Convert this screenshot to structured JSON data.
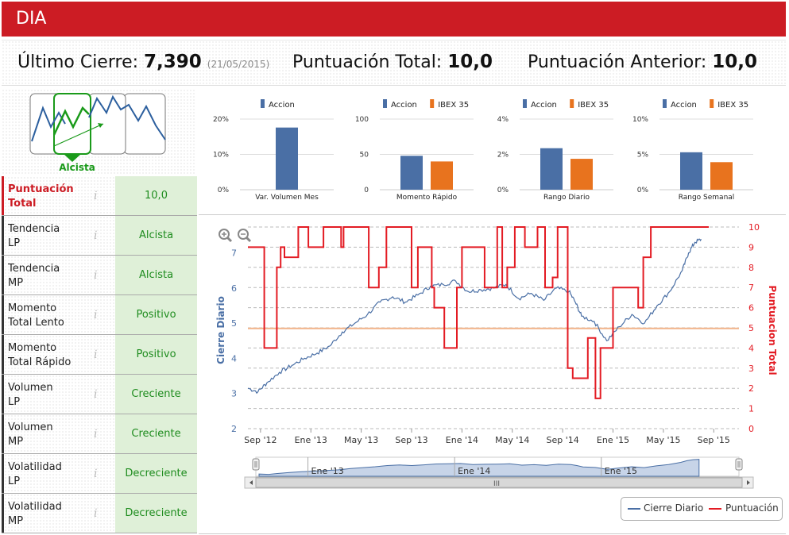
{
  "header": {
    "title": "DIA"
  },
  "summary": {
    "last_close_label": "Último Cierre:",
    "last_close_value": "7,390",
    "last_close_date": "(21/05/2015)",
    "total_label": "Puntuación Total:",
    "total_value": "10,0",
    "prev_label": "Puntuación Anterior:",
    "prev_value": "10,0"
  },
  "trend": {
    "label": "Alcista"
  },
  "table": [
    {
      "name_line1": "Puntuación",
      "name_line2": "Total",
      "value": "10,0",
      "info": "i"
    },
    {
      "name_line1": "Tendencia",
      "name_line2": "LP",
      "value": "Alcista",
      "info": "i"
    },
    {
      "name_line1": "Tendencia",
      "name_line2": "MP",
      "value": "Alcista",
      "info": "i"
    },
    {
      "name_line1": "Momento",
      "name_line2": "Total Lento",
      "value": "Positivo",
      "info": "i"
    },
    {
      "name_line1": "Momento",
      "name_line2": "Total Rápido",
      "value": "Positivo",
      "info": "i"
    },
    {
      "name_line1": "Volumen",
      "name_line2": "LP",
      "value": "Creciente",
      "info": "i"
    },
    {
      "name_line1": "Volumen",
      "name_line2": "MP",
      "value": "Creciente",
      "info": "i"
    },
    {
      "name_line1": "Volatilidad",
      "name_line2": "LP",
      "value": "Decreciente",
      "info": "i"
    },
    {
      "name_line1": "Volatilidad",
      "name_line2": "MP",
      "value": "Decreciente",
      "info": "i"
    }
  ],
  "colors": {
    "accion": "#4a6fa5",
    "ibex": "#e8731e",
    "red": "#e31b23",
    "orange_line": "#f2b48a",
    "green": "#1a9a1a"
  },
  "chart_data": [
    {
      "type": "bar",
      "title": "Var. Volumen Mes",
      "legend": [
        "Accion"
      ],
      "ticks": [
        "20%",
        "10%",
        "0%"
      ],
      "ylim": [
        0,
        20
      ],
      "series": [
        {
          "name": "Accion",
          "values": [
            17.6
          ]
        }
      ]
    },
    {
      "type": "bar",
      "title": "Momento Rápido",
      "legend": [
        "Accion",
        "IBEX 35"
      ],
      "ticks": [
        "100",
        "50",
        "0"
      ],
      "ylim": [
        0,
        100
      ],
      "series": [
        {
          "name": "Accion",
          "values": [
            48
          ]
        },
        {
          "name": "IBEX 35",
          "values": [
            40
          ]
        }
      ]
    },
    {
      "type": "bar",
      "title": "Rango Diario",
      "legend": [
        "Accion",
        "IBEX 35"
      ],
      "ticks": [
        "4%",
        "2%",
        "0%"
      ],
      "ylim": [
        0,
        4
      ],
      "series": [
        {
          "name": "Accion",
          "values": [
            2.35
          ]
        },
        {
          "name": "IBEX 35",
          "values": [
            1.75
          ]
        }
      ]
    },
    {
      "type": "bar",
      "title": "Rango Semanal",
      "legend": [
        "Accion",
        "IBEX 35"
      ],
      "ticks": [
        "10%",
        "5%",
        "0%"
      ],
      "ylim": [
        0,
        10
      ],
      "series": [
        {
          "name": "Accion",
          "values": [
            5.3
          ]
        },
        {
          "name": "IBEX 35",
          "values": [
            3.9
          ]
        }
      ]
    },
    {
      "type": "line",
      "ylabel_left": "Cierre Diario",
      "ylabel_right": "Puntuacion Total",
      "left_ticks": [
        "2",
        "3",
        "4",
        "5",
        "6",
        "7"
      ],
      "left_ylim": [
        2,
        7.6
      ],
      "right_ticks": [
        "0",
        "1",
        "2",
        "3",
        "4",
        "5",
        "6",
        "7",
        "8",
        "9",
        "10"
      ],
      "right_ylim": [
        0,
        10
      ],
      "x_ticks": [
        "Sep '12",
        "Ene '13",
        "May '13",
        "Sep '13",
        "Ene '14",
        "May '14",
        "Sep '14",
        "Ene '15",
        "May '15",
        "Sep '15"
      ],
      "x_range_months": [
        0,
        39
      ],
      "navigator_ticks": [
        "Ene '13",
        "Ene '14",
        "Ene '15"
      ],
      "scroll_grip": "III",
      "reference_line": 4.85,
      "legend": [
        "Cierre Diario",
        "Puntuación"
      ],
      "series": [
        {
          "name": "Cierre Diario",
          "x": [
            0,
            0.8,
            1.5,
            2.5,
            3.5,
            4.5,
            5.5,
            6.5,
            7.5,
            8.5,
            9.5,
            10.5,
            11.5,
            12.5,
            13.5,
            14.5,
            15.5,
            16.5,
            17.5,
            18.5,
            19.5,
            20.5,
            21.5,
            22.5,
            23.5,
            24.5,
            25.5,
            26,
            26.5,
            27.5,
            28.5,
            29.5,
            30.5,
            31.5,
            32.5,
            33.5,
            34.5,
            35,
            35.5,
            36
          ],
          "values": [
            3.15,
            3.05,
            3.3,
            3.6,
            3.8,
            4.0,
            4.15,
            4.35,
            4.75,
            5.0,
            5.25,
            5.6,
            5.75,
            5.6,
            5.8,
            6.05,
            6.1,
            6.2,
            5.9,
            5.95,
            6.0,
            6.1,
            5.7,
            5.85,
            5.65,
            6.0,
            5.9,
            5.6,
            5.2,
            5.05,
            4.5,
            4.9,
            5.25,
            5.0,
            5.5,
            5.9,
            6.5,
            7.0,
            7.3,
            7.39
          ]
        },
        {
          "name": "Puntuación",
          "x": [
            0,
            1.3,
            1.3,
            2.3,
            2.3,
            2.6,
            2.6,
            2.9,
            2.9,
            4.0,
            4.0,
            4.8,
            4.8,
            6.0,
            6.0,
            7.4,
            7.4,
            7.6,
            7.6,
            9.6,
            9.6,
            10.4,
            10.4,
            11.0,
            11.0,
            13.0,
            13.0,
            13.5,
            13.5,
            14.6,
            14.6,
            14.8,
            14.8,
            15.6,
            15.6,
            16.6,
            16.6,
            17.0,
            17.0,
            18.8,
            18.8,
            19.8,
            19.8,
            20.2,
            20.2,
            20.6,
            20.6,
            21.2,
            21.2,
            22.0,
            22.0,
            23.0,
            23.0,
            23.6,
            23.6,
            24.2,
            24.2,
            24.6,
            24.6,
            25.4,
            25.4,
            25.8,
            25.8,
            27.0,
            27.0,
            27.6,
            27.6,
            28.0,
            28.0,
            29.0,
            29.0,
            31.0,
            31.0,
            31.4,
            31.4,
            32.0,
            32.0,
            33.0,
            33.0,
            33.6,
            33.6,
            34.0,
            34.0,
            35.0,
            35.0,
            36.6
          ],
          "values": [
            9,
            9,
            4,
            4,
            8,
            8,
            9,
            9,
            8.5,
            8.5,
            10,
            10,
            9,
            9,
            10,
            10,
            9,
            9,
            10,
            10,
            7,
            7,
            8,
            8,
            10,
            10,
            7,
            7,
            9,
            9,
            7,
            7,
            6,
            6,
            4,
            4,
            7,
            7,
            9,
            9,
            7,
            7,
            10,
            10,
            7,
            7,
            8,
            8,
            10,
            10,
            9,
            9,
            10,
            10,
            7,
            7,
            7.5,
            7.5,
            10,
            10,
            3,
            3,
            2.5,
            2.5,
            4.5,
            4.5,
            1.5,
            1.5,
            4,
            4,
            7,
            7,
            6,
            6,
            8.5,
            8.5,
            10,
            10,
            10,
            10,
            10,
            10,
            10,
            10,
            10,
            10
          ]
        }
      ]
    }
  ]
}
